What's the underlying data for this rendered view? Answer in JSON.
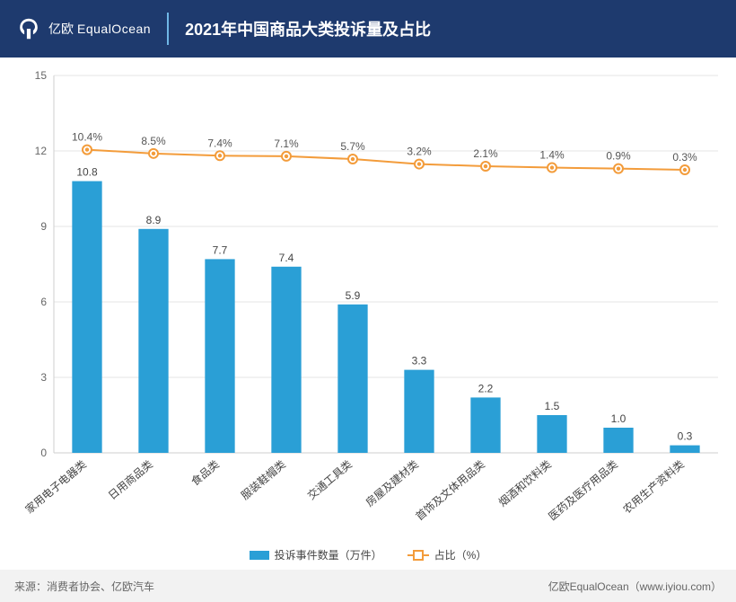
{
  "header": {
    "logo_cn": "亿欧",
    "logo_en": "EqualOcean",
    "title": "2021年中国商品大类投诉量及占比"
  },
  "chart": {
    "type": "bar+line",
    "background_color": "#ffffff",
    "grid_color": "#e6e6e6",
    "axis_color": "#cfcfcf",
    "bar_color": "#2a9fd6",
    "line_color": "#f39c3b",
    "label_fontsize": 12,
    "label_color": "#444444",
    "y_axis": {
      "min": 0,
      "max": 15,
      "tick_step": 3,
      "ticks": [
        0,
        3,
        6,
        9,
        12,
        15
      ]
    },
    "bar_width_ratio": 0.45,
    "line_y_range": {
      "top_at": 12.05,
      "bottom_at": 11.25
    },
    "categories": [
      "家用电子电器类",
      "日用商品类",
      "食品类",
      "服装鞋帽类",
      "交通工具类",
      "房屋及建材类",
      "首饰及文体用品类",
      "烟酒和饮料类",
      "医药及医疗用品类",
      "农用生产资料类"
    ],
    "bar_values": [
      10.8,
      8.9,
      7.7,
      7.4,
      5.9,
      3.3,
      2.2,
      1.5,
      1.0,
      0.3
    ],
    "line_percents": [
      10.4,
      8.5,
      7.4,
      7.1,
      5.7,
      3.2,
      2.1,
      1.4,
      0.9,
      0.3
    ],
    "bar_label_fmt": "{v}",
    "line_label_fmt": "{v}%"
  },
  "legend": {
    "bar_label": "投诉事件数量（万件）",
    "line_label": "占比（%）"
  },
  "footer": {
    "left_prefix": "来源：",
    "left_source": "消费者协会、亿欧汽车",
    "right": "亿欧EqualOcean（www.iyiou.com）"
  }
}
